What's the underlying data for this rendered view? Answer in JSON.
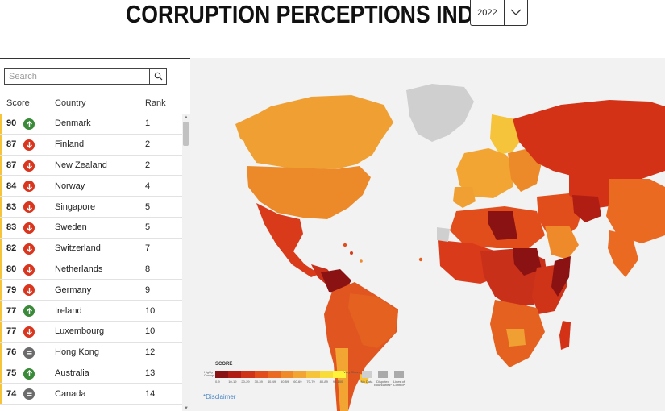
{
  "header": {
    "title": "CORRUPTION PERCEPTIONS INDEX",
    "year": "2022"
  },
  "search": {
    "placeholder": "Search"
  },
  "columns": {
    "score": "Score",
    "country": "Country",
    "rank": "Rank"
  },
  "rows": [
    {
      "score": "90",
      "trend": "up",
      "country": "Denmark",
      "rank": "1"
    },
    {
      "score": "87",
      "trend": "down",
      "country": "Finland",
      "rank": "2"
    },
    {
      "score": "87",
      "trend": "down",
      "country": "New Zealand",
      "rank": "2"
    },
    {
      "score": "84",
      "trend": "down",
      "country": "Norway",
      "rank": "4"
    },
    {
      "score": "83",
      "trend": "down",
      "country": "Singapore",
      "rank": "5"
    },
    {
      "score": "83",
      "trend": "down",
      "country": "Sweden",
      "rank": "5"
    },
    {
      "score": "82",
      "trend": "down",
      "country": "Switzerland",
      "rank": "7"
    },
    {
      "score": "80",
      "trend": "down",
      "country": "Netherlands",
      "rank": "8"
    },
    {
      "score": "79",
      "trend": "down",
      "country": "Germany",
      "rank": "9"
    },
    {
      "score": "77",
      "trend": "up",
      "country": "Ireland",
      "rank": "10"
    },
    {
      "score": "77",
      "trend": "down",
      "country": "Luxembourg",
      "rank": "10"
    },
    {
      "score": "76",
      "trend": "same",
      "country": "Hong Kong",
      "rank": "12"
    },
    {
      "score": "75",
      "trend": "up",
      "country": "Australia",
      "rank": "13"
    },
    {
      "score": "74",
      "trend": "same",
      "country": "Canada",
      "rank": "14"
    }
  ],
  "colors": {
    "up": "#3a8a3a",
    "down": "#d9361f",
    "same": "#6b6b6b",
    "row_bar": "#f5c43a",
    "no_data": "#cfcfcf"
  },
  "legend": {
    "title": "SCORE",
    "highly_corrupt": "Highly Corrupt",
    "very_clean": "Very Clean",
    "no_data": "No Data",
    "disputed": "Disputed Boundaries*",
    "lines_of_control": "Lines of Control*",
    "ranges": [
      "0-9",
      "10-19",
      "20-29",
      "30-39",
      "40-49",
      "50-59",
      "60-69",
      "70-79",
      "80-89",
      "90-100"
    ],
    "colors": [
      "#8b1212",
      "#b01d12",
      "#cf3418",
      "#e14e1c",
      "#ea6a22",
      "#ef8a2a",
      "#f2a532",
      "#f5c43a",
      "#f8dc3a",
      "#fff23a"
    ]
  },
  "disclaimer": "*Disclaimer"
}
